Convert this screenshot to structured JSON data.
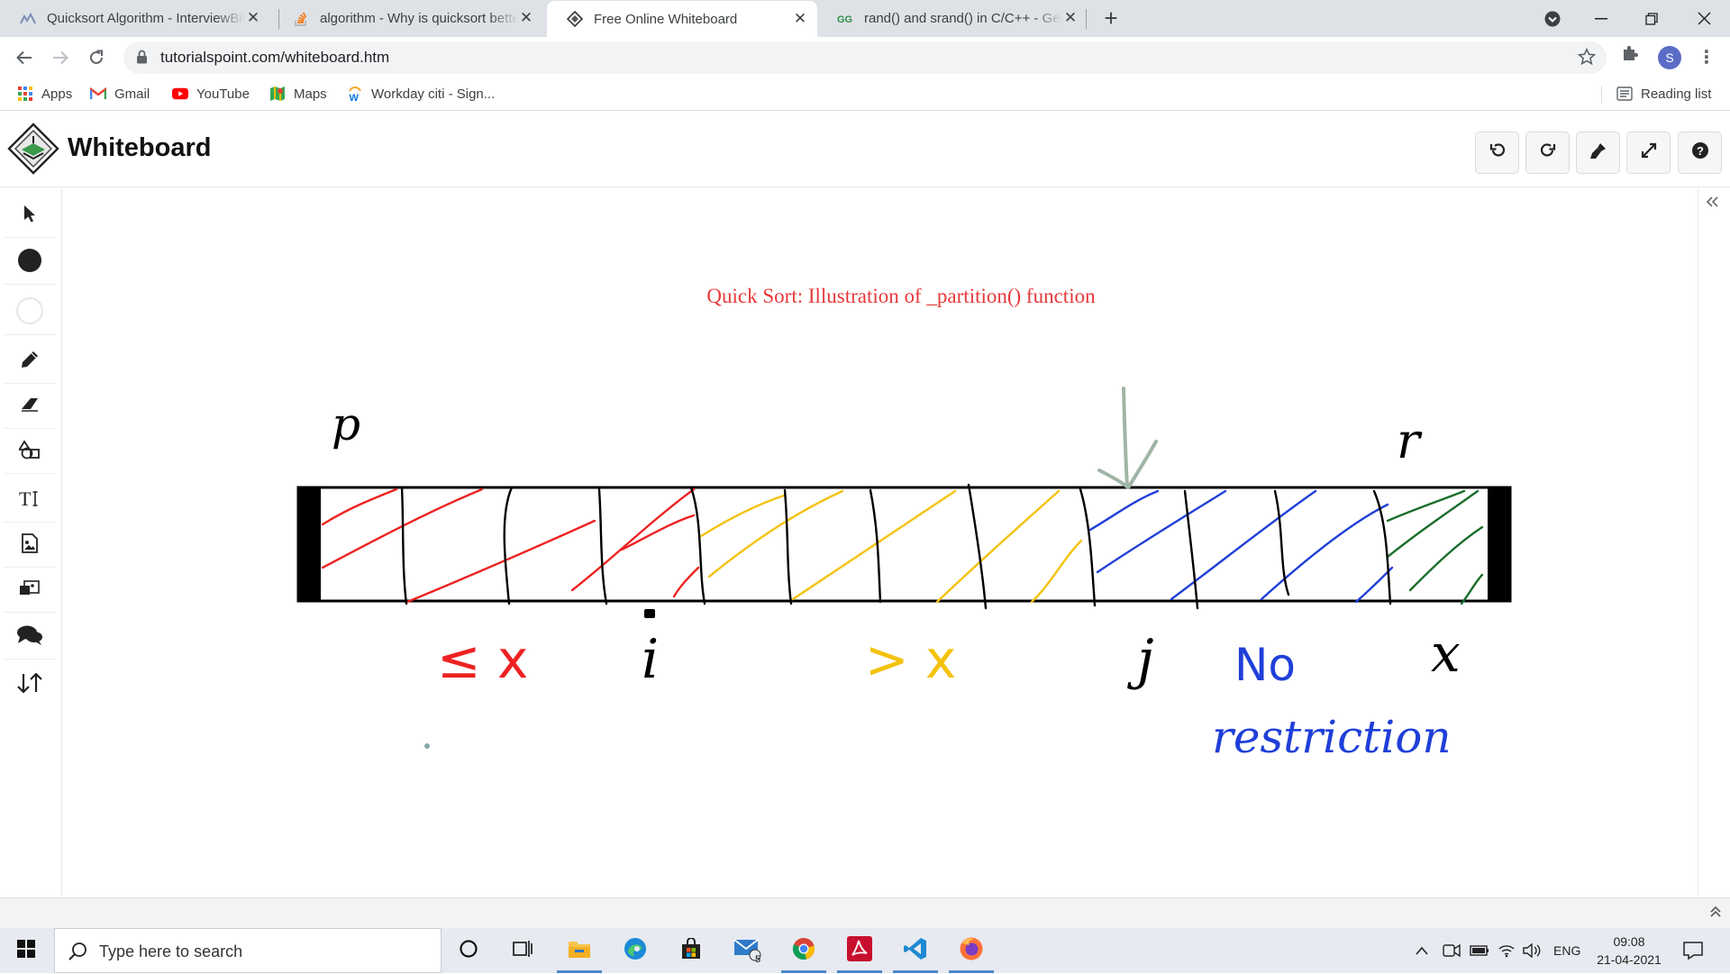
{
  "browser": {
    "tabs": [
      {
        "title": "Quicksort Algorithm - InterviewBit",
        "icon": "interviewbit-favicon",
        "active": false
      },
      {
        "title": "algorithm - Why is quicksort better",
        "icon": "stackoverflow-favicon",
        "active": false
      },
      {
        "title": "Free Online Whiteboard",
        "icon": "whiteboard-favicon",
        "active": true
      },
      {
        "title": "rand() and srand() in C/C++ - GeeksforGeeks",
        "icon": "geeksforgeeks-favicon",
        "active": false
      }
    ],
    "new_tab": "+",
    "url": "tutorialspoint.com/whiteboard.htm",
    "profile_initial": "S",
    "bookmarks": [
      {
        "label": "Apps",
        "icon": "apps-grid-icon"
      },
      {
        "label": "Gmail",
        "icon": "gmail-icon"
      },
      {
        "label": "YouTube",
        "icon": "youtube-icon"
      },
      {
        "label": "Maps",
        "icon": "maps-icon"
      },
      {
        "label": "Workday citi - Sign...",
        "icon": "workday-icon"
      }
    ],
    "reading_list": "Reading list"
  },
  "app": {
    "title": "Whiteboard",
    "header_buttons": [
      "undo-icon",
      "redo-icon",
      "clear-brush-icon",
      "fullscreen-icon",
      "help-icon"
    ],
    "tools": [
      "select-arrow-icon",
      "color-fill-icon",
      "stroke-color-icon",
      "pencil-icon",
      "eraser-icon",
      "shapes-icon",
      "text-tool-icon",
      "image-icon",
      "screenshot-icon",
      "chat-icon",
      "swap-icon"
    ]
  },
  "drawing": {
    "title": "Quick Sort: Illustration of _partition() function",
    "title_color": "#e8393a",
    "label_p": "p",
    "label_r": "r",
    "label_lt_x": "≤ x",
    "label_i": "i",
    "label_gt_x": "> x",
    "label_j": "j",
    "label_x": "x",
    "label_no": "No",
    "label_restriction": "restriction",
    "colors": {
      "red": "#ee2222",
      "yellow": "#f4c20d",
      "blue": "#1f3fd8",
      "green": "#1b6e2c",
      "arrow": "#9fb5a6"
    }
  },
  "taskbar": {
    "search_placeholder": "Type here to search",
    "mail_badge": "5",
    "language": "ENG",
    "time": "09:08",
    "date": "21-04-2021"
  }
}
